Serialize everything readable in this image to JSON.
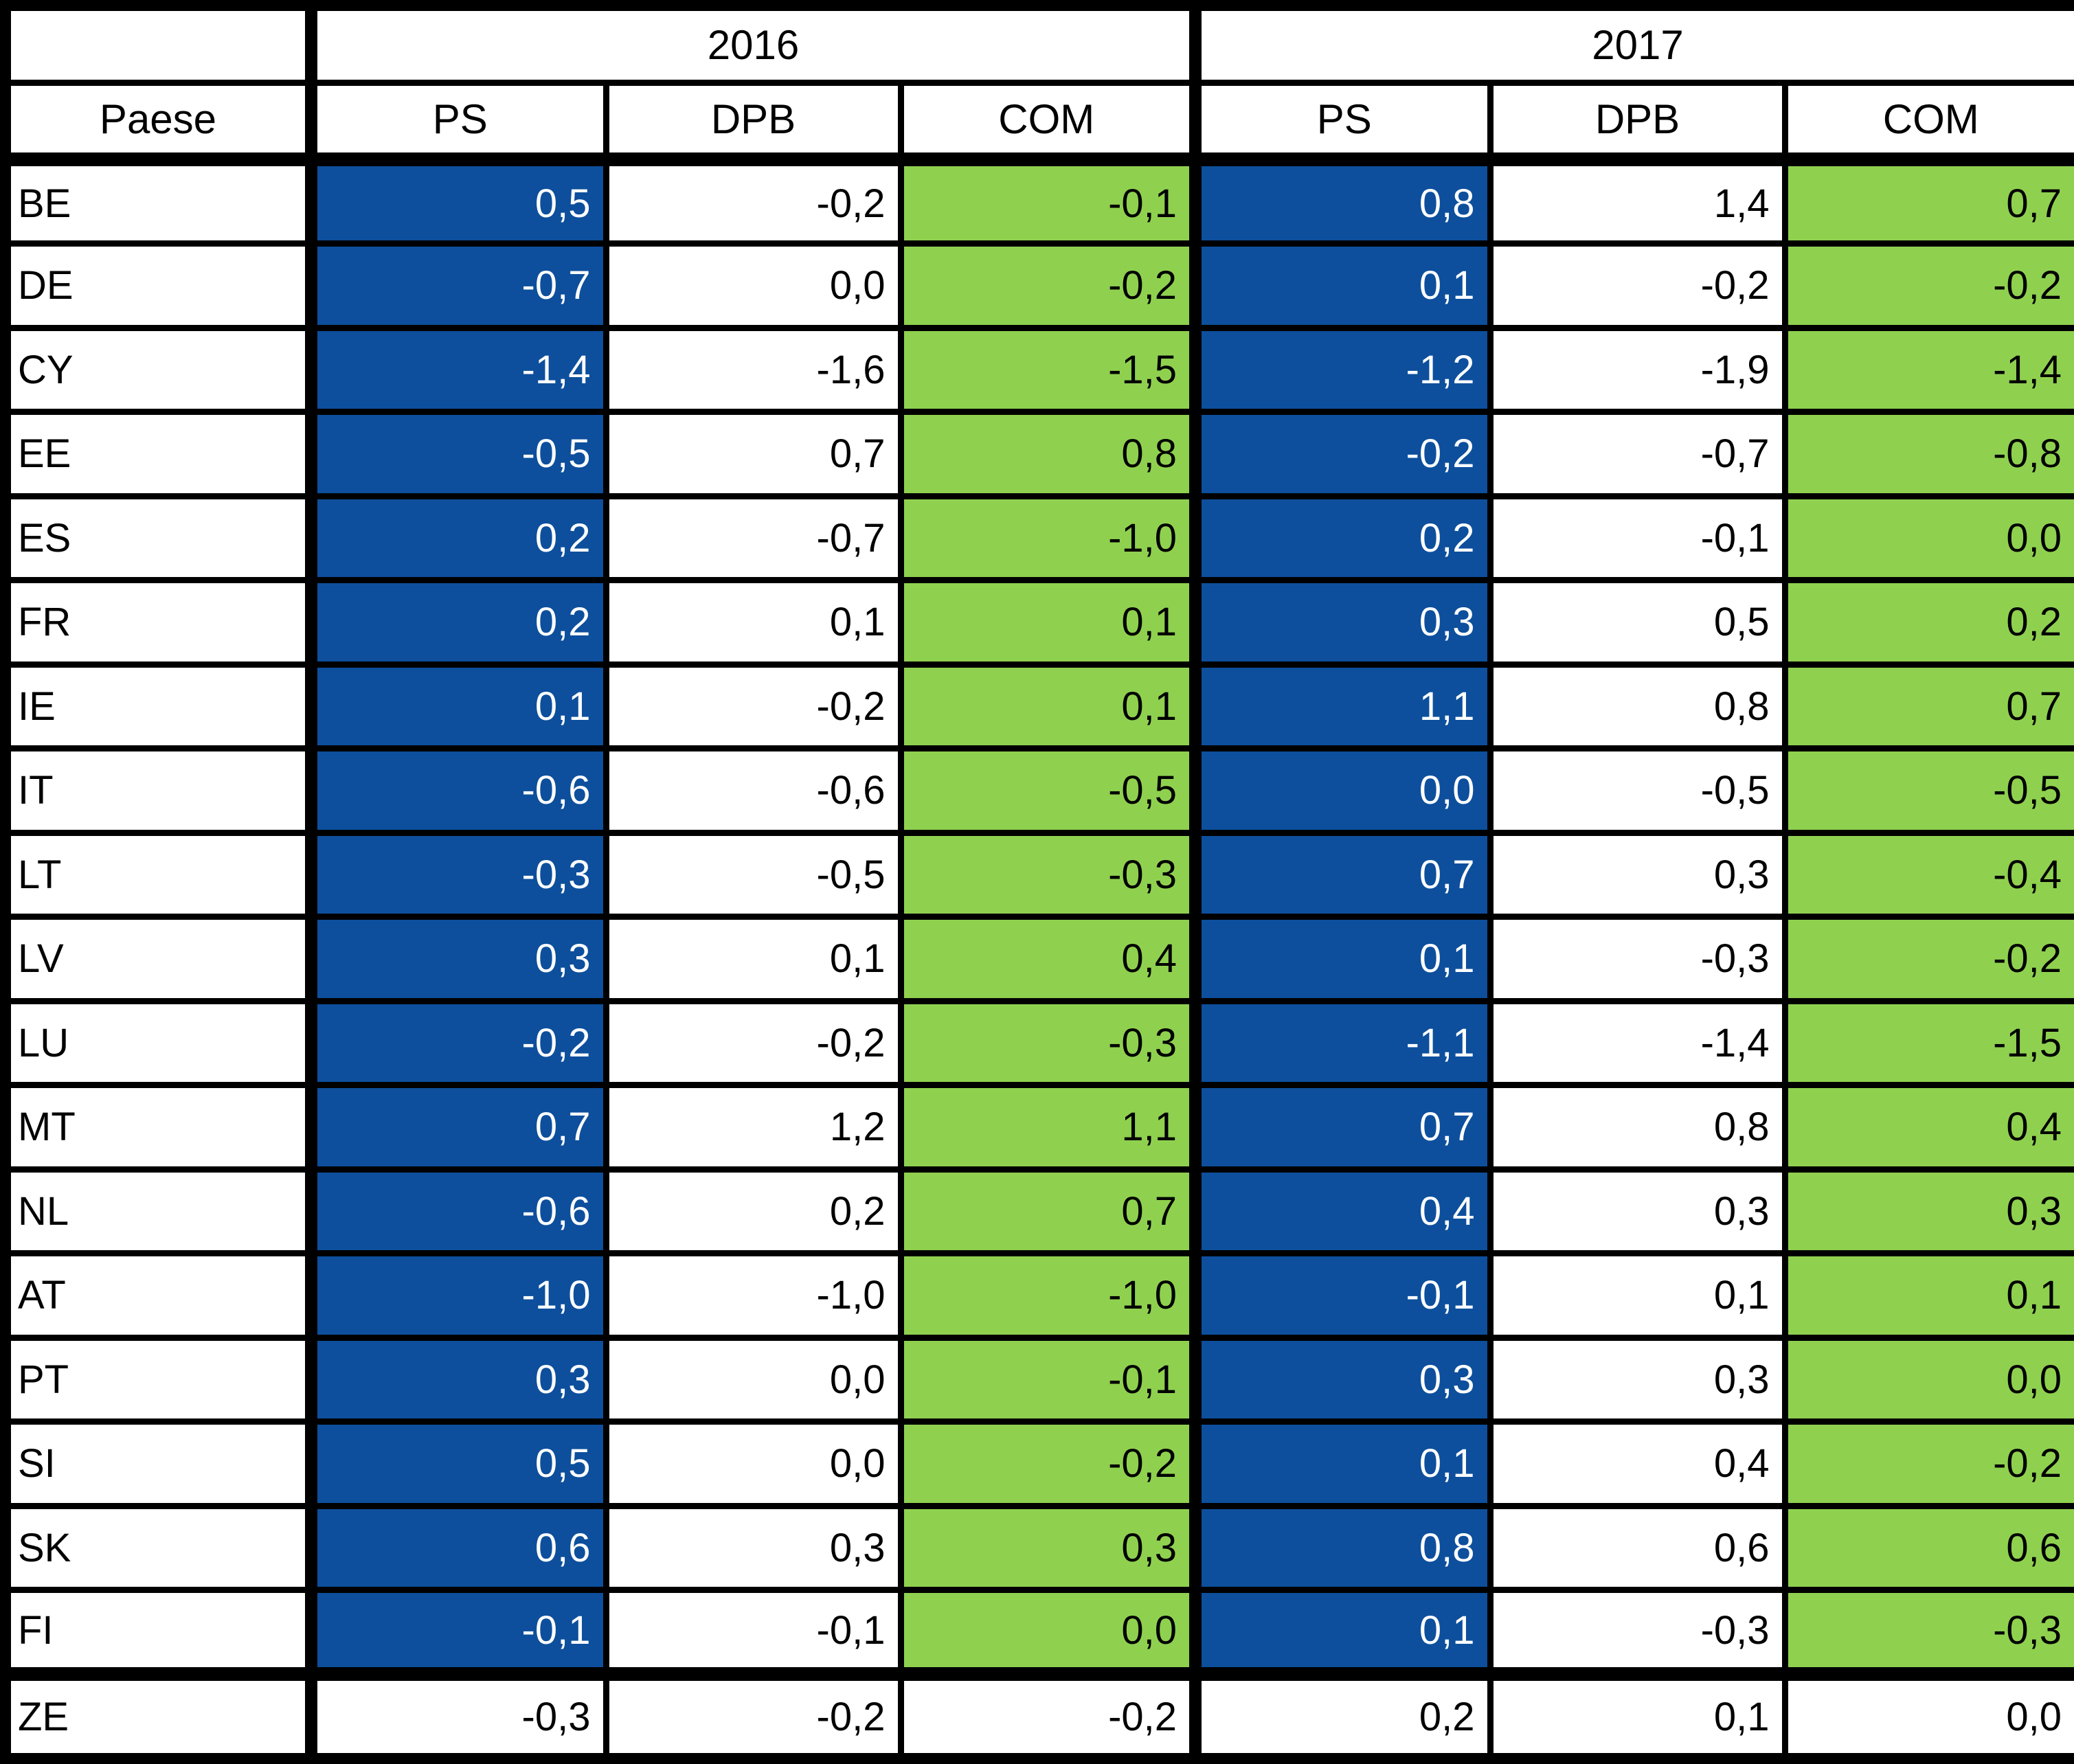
{
  "colors": {
    "ps_fill": "#0D4F9C",
    "ps_text": "#FFFFFF",
    "com_fill": "#8FD14F",
    "grid": "#000000",
    "text": "#000000"
  },
  "chart_data": {
    "type": "table",
    "title": "",
    "row_header_label": "Paese",
    "year_groups": [
      "2016",
      "2017"
    ],
    "sub_columns": [
      "PS",
      "DPB",
      "COM"
    ],
    "rows": [
      {
        "code": "BE",
        "highlighted": true,
        "values": [
          "0,5",
          "-0,2",
          "-0,1",
          "0,8",
          "1,4",
          "0,7"
        ]
      },
      {
        "code": "DE",
        "highlighted": true,
        "values": [
          "-0,7",
          "0,0",
          "-0,2",
          "0,1",
          "-0,2",
          "-0,2"
        ]
      },
      {
        "code": "CY",
        "highlighted": true,
        "values": [
          "-1,4",
          "-1,6",
          "-1,5",
          "-1,2",
          "-1,9",
          "-1,4"
        ]
      },
      {
        "code": "EE",
        "highlighted": true,
        "values": [
          "-0,5",
          "0,7",
          "0,8",
          "-0,2",
          "-0,7",
          "-0,8"
        ]
      },
      {
        "code": "ES",
        "highlighted": true,
        "values": [
          "0,2",
          "-0,7",
          "-1,0",
          "0,2",
          "-0,1",
          "0,0"
        ]
      },
      {
        "code": "FR",
        "highlighted": true,
        "values": [
          "0,2",
          "0,1",
          "0,1",
          "0,3",
          "0,5",
          "0,2"
        ]
      },
      {
        "code": "IE",
        "highlighted": true,
        "values": [
          "0,1",
          "-0,2",
          "0,1",
          "1,1",
          "0,8",
          "0,7"
        ]
      },
      {
        "code": "IT",
        "highlighted": true,
        "values": [
          "-0,6",
          "-0,6",
          "-0,5",
          "0,0",
          "-0,5",
          "-0,5"
        ]
      },
      {
        "code": "LT",
        "highlighted": true,
        "values": [
          "-0,3",
          "-0,5",
          "-0,3",
          "0,7",
          "0,3",
          "-0,4"
        ]
      },
      {
        "code": "LV",
        "highlighted": true,
        "values": [
          "0,3",
          "0,1",
          "0,4",
          "0,1",
          "-0,3",
          "-0,2"
        ]
      },
      {
        "code": "LU",
        "highlighted": true,
        "values": [
          "-0,2",
          "-0,2",
          "-0,3",
          "-1,1",
          "-1,4",
          "-1,5"
        ]
      },
      {
        "code": "MT",
        "highlighted": true,
        "values": [
          "0,7",
          "1,2",
          "1,1",
          "0,7",
          "0,8",
          "0,4"
        ]
      },
      {
        "code": "NL",
        "highlighted": true,
        "values": [
          "-0,6",
          "0,2",
          "0,7",
          "0,4",
          "0,3",
          "0,3"
        ]
      },
      {
        "code": "AT",
        "highlighted": true,
        "values": [
          "-1,0",
          "-1,0",
          "-1,0",
          "-0,1",
          "0,1",
          "0,1"
        ]
      },
      {
        "code": "PT",
        "highlighted": true,
        "values": [
          "0,3",
          "0,0",
          "-0,1",
          "0,3",
          "0,3",
          "0,0"
        ]
      },
      {
        "code": "SI",
        "highlighted": true,
        "values": [
          "0,5",
          "0,0",
          "-0,2",
          "0,1",
          "0,4",
          "-0,2"
        ]
      },
      {
        "code": "SK",
        "highlighted": true,
        "values": [
          "0,6",
          "0,3",
          "0,3",
          "0,8",
          "0,6",
          "0,6"
        ]
      },
      {
        "code": "FI",
        "highlighted": true,
        "values": [
          "-0,1",
          "-0,1",
          "0,0",
          "0,1",
          "-0,3",
          "-0,3"
        ]
      },
      {
        "code": "ZE",
        "highlighted": false,
        "separator_above": true,
        "values": [
          "-0,3",
          "-0,2",
          "-0,2",
          "0,2",
          "0,1",
          "0,0"
        ]
      }
    ]
  }
}
